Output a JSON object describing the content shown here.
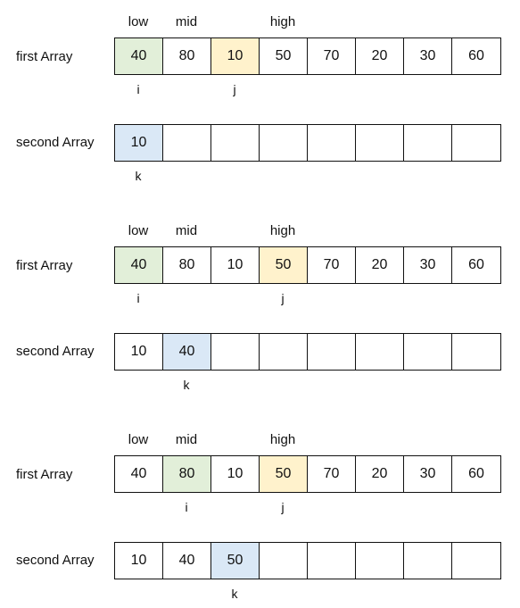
{
  "colors": {
    "i_highlight": "#e2efd9",
    "j_highlight": "#fff2cc",
    "k_highlight": "#dae8f6",
    "border": "#111111"
  },
  "labels": {
    "first_array": "first Array",
    "second_array": "second Array"
  },
  "steps": [
    {
      "first": [
        "40",
        "80",
        "10",
        "50",
        "70",
        "20",
        "30",
        "60"
      ],
      "second": [
        "10",
        "",
        "",
        "",
        "",
        "",
        "",
        ""
      ],
      "pointers_top": [
        {
          "label": "low",
          "index": 0
        },
        {
          "label": "mid",
          "index": 1
        },
        {
          "label": "high",
          "index": 3
        }
      ],
      "i": {
        "label": "i",
        "index": 0
      },
      "j": {
        "label": "j",
        "index": 2
      },
      "k": {
        "label": "k",
        "index": 0
      }
    },
    {
      "first": [
        "40",
        "80",
        "10",
        "50",
        "70",
        "20",
        "30",
        "60"
      ],
      "second": [
        "10",
        "40",
        "",
        "",
        "",
        "",
        "",
        ""
      ],
      "pointers_top": [
        {
          "label": "low",
          "index": 0
        },
        {
          "label": "mid",
          "index": 1
        },
        {
          "label": "high",
          "index": 3
        }
      ],
      "i": {
        "label": "i",
        "index": 0
      },
      "j": {
        "label": "j",
        "index": 3
      },
      "k": {
        "label": "k",
        "index": 1
      }
    },
    {
      "first": [
        "40",
        "80",
        "10",
        "50",
        "70",
        "20",
        "30",
        "60"
      ],
      "second": [
        "10",
        "40",
        "50",
        "",
        "",
        "",
        "",
        ""
      ],
      "pointers_top": [
        {
          "label": "low",
          "index": 0
        },
        {
          "label": "mid",
          "index": 1
        },
        {
          "label": "high",
          "index": 3
        }
      ],
      "i": {
        "label": "i",
        "index": 1
      },
      "j": {
        "label": "j",
        "index": 3
      },
      "k": {
        "label": "k",
        "index": 2
      }
    }
  ]
}
